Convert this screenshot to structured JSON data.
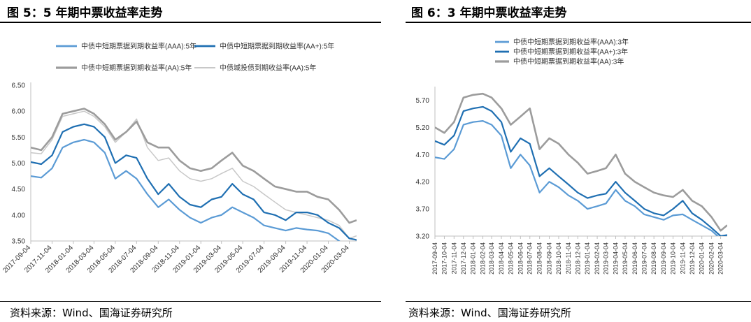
{
  "charts": [
    {
      "title": "图 5：5 年期中票收益率走势",
      "source": "资料来源：Wind、国海证券研究所"
    },
    {
      "title": "图 6：3 年期中票收益率走势",
      "source": "资料来源：Wind、国海证券研究所"
    }
  ],
  "chart_data": [
    {
      "type": "line",
      "title": "图 5：5 年期中票收益率走势",
      "xlabel": "",
      "ylabel": "",
      "ylim": [
        3.5,
        6.5
      ],
      "yticks": [
        "6.50",
        "6.00",
        "5.50",
        "5.00",
        "4.50",
        "4.00",
        "3.50"
      ],
      "xticks": [
        "2017-09-04",
        "2017-11-04",
        "2018-01-04",
        "2018-03-04",
        "2018-05-04",
        "2018-07-04",
        "2018-09-04",
        "2018-11-04",
        "2019-01-04",
        "2019-03-04",
        "2019-05-04",
        "2019-07-04",
        "2019-09-04",
        "2019-11-04",
        "2020-01-04",
        "2020-03-04"
      ],
      "grid": false,
      "legend_position": "top",
      "series": [
        {
          "name": "中债中短期票据到期收益率(AAA):5年",
          "color": "#5b9bd5",
          "width": 2.2,
          "x": [
            "2017-09-04",
            "2017-10-04",
            "2017-11-04",
            "2017-12-04",
            "2018-01-04",
            "2018-02-04",
            "2018-03-04",
            "2018-04-04",
            "2018-05-04",
            "2018-06-04",
            "2018-07-04",
            "2018-08-04",
            "2018-09-04",
            "2018-10-04",
            "2018-11-04",
            "2018-12-04",
            "2019-01-04",
            "2019-02-04",
            "2019-03-04",
            "2019-04-04",
            "2019-05-04",
            "2019-06-04",
            "2019-07-04",
            "2019-08-04",
            "2019-09-04",
            "2019-10-04",
            "2019-11-04",
            "2019-12-04",
            "2020-01-04",
            "2020-02-04",
            "2020-03-04",
            "2020-03-25"
          ],
          "values": [
            4.75,
            4.72,
            4.9,
            5.3,
            5.4,
            5.45,
            5.4,
            5.2,
            4.7,
            4.85,
            4.7,
            4.4,
            4.15,
            4.3,
            4.1,
            3.95,
            3.85,
            3.95,
            4.0,
            4.15,
            4.05,
            3.95,
            3.8,
            3.75,
            3.7,
            3.75,
            3.72,
            3.7,
            3.65,
            3.5,
            3.35,
            3.3
          ]
        },
        {
          "name": "中债中短期票据到期收益率(AA+):5年",
          "color": "#1f6fb2",
          "width": 2.2,
          "x": [
            "2017-09-04",
            "2017-10-04",
            "2017-11-04",
            "2017-12-04",
            "2018-01-04",
            "2018-02-04",
            "2018-03-04",
            "2018-04-04",
            "2018-05-04",
            "2018-06-04",
            "2018-07-04",
            "2018-08-04",
            "2018-09-04",
            "2018-10-04",
            "2018-11-04",
            "2018-12-04",
            "2019-01-04",
            "2019-02-04",
            "2019-03-04",
            "2019-04-04",
            "2019-05-04",
            "2019-06-04",
            "2019-07-04",
            "2019-08-04",
            "2019-09-04",
            "2019-10-04",
            "2019-11-04",
            "2019-12-04",
            "2020-01-04",
            "2020-02-04",
            "2020-03-04",
            "2020-03-25"
          ],
          "values": [
            5.02,
            4.98,
            5.15,
            5.6,
            5.7,
            5.75,
            5.7,
            5.5,
            5.0,
            5.15,
            5.1,
            4.7,
            4.4,
            4.6,
            4.35,
            4.2,
            4.15,
            4.3,
            4.35,
            4.6,
            4.4,
            4.3,
            4.05,
            4.0,
            3.9,
            4.05,
            4.05,
            4.0,
            3.85,
            3.75,
            3.55,
            3.52
          ]
        },
        {
          "name": "中债中短期票据到期收益率(AA):5年",
          "color": "#9c9c9c",
          "width": 2.6,
          "x": [
            "2017-09-04",
            "2017-10-04",
            "2017-11-04",
            "2017-12-04",
            "2018-01-04",
            "2018-02-04",
            "2018-03-04",
            "2018-04-04",
            "2018-05-04",
            "2018-06-04",
            "2018-07-04",
            "2018-08-04",
            "2018-09-04",
            "2018-10-04",
            "2018-11-04",
            "2018-12-04",
            "2019-01-04",
            "2019-02-04",
            "2019-03-04",
            "2019-04-04",
            "2019-05-04",
            "2019-06-04",
            "2019-07-04",
            "2019-08-04",
            "2019-09-04",
            "2019-10-04",
            "2019-11-04",
            "2019-12-04",
            "2020-01-04",
            "2020-02-04",
            "2020-03-04",
            "2020-03-25"
          ],
          "values": [
            5.3,
            5.25,
            5.5,
            5.95,
            6.0,
            6.05,
            5.95,
            5.75,
            5.45,
            5.6,
            5.8,
            5.4,
            5.3,
            5.3,
            5.05,
            4.9,
            4.85,
            4.9,
            5.05,
            5.2,
            4.95,
            4.85,
            4.7,
            4.55,
            4.5,
            4.45,
            4.45,
            4.35,
            4.3,
            4.1,
            3.85,
            3.9
          ]
        },
        {
          "name": "中债城投债到期收益率(AA):5年",
          "color": "#c8c8c8",
          "width": 1.5,
          "x": [
            "2017-09-04",
            "2017-10-04",
            "2017-11-04",
            "2017-12-04",
            "2018-01-04",
            "2018-02-04",
            "2018-03-04",
            "2018-04-04",
            "2018-05-04",
            "2018-06-04",
            "2018-07-04",
            "2018-08-04",
            "2018-09-04",
            "2018-10-04",
            "2018-11-04",
            "2018-12-04",
            "2019-01-04",
            "2019-02-04",
            "2019-03-04",
            "2019-04-04",
            "2019-05-04",
            "2019-06-04",
            "2019-07-04",
            "2019-08-04",
            "2019-09-04",
            "2019-10-04",
            "2019-11-04",
            "2019-12-04",
            "2020-01-04",
            "2020-02-04",
            "2020-03-04",
            "2020-03-25"
          ],
          "values": [
            5.2,
            5.18,
            5.45,
            5.9,
            5.95,
            6.0,
            5.9,
            5.7,
            5.4,
            5.6,
            5.85,
            5.3,
            5.05,
            5.1,
            4.85,
            4.7,
            4.65,
            4.7,
            4.8,
            4.9,
            4.65,
            4.55,
            4.4,
            4.25,
            4.1,
            4.05,
            4.0,
            3.95,
            3.9,
            3.8,
            3.55,
            3.6
          ]
        }
      ]
    },
    {
      "type": "line",
      "title": "图 6：3 年期中票收益率走势",
      "xlabel": "",
      "ylabel": "",
      "ylim": [
        3.2,
        5.9
      ],
      "yticks": [
        "5.70",
        "5.20",
        "4.70",
        "4.20",
        "3.70",
        "3.20"
      ],
      "xticks": [
        "2017-09-04",
        "2017-10-04",
        "2017-11-04",
        "2017-12-04",
        "2018-01-04",
        "2018-02-04",
        "2018-03-04",
        "2018-04-04",
        "2018-05-04",
        "2018-06-04",
        "2018-07-04",
        "2018-08-04",
        "2018-09-04",
        "2018-10-04",
        "2018-11-04",
        "2018-12-04",
        "2019-01-04",
        "2019-02-04",
        "2019-03-04",
        "2019-04-04",
        "2019-05-04",
        "2019-06-04",
        "2019-07-04",
        "2019-08-04",
        "2019-09-04",
        "2019-10-04",
        "2019-11-04",
        "2019-12-04",
        "2020-01-04",
        "2020-02-04",
        "2020-03-04"
      ],
      "grid": false,
      "legend_position": "top",
      "series": [
        {
          "name": "中债中短期票据到期收益率(AAA):3年",
          "color": "#5b9bd5",
          "width": 2.2,
          "x": [
            "2017-09-04",
            "2017-10-04",
            "2017-11-04",
            "2017-12-04",
            "2018-01-04",
            "2018-02-04",
            "2018-03-04",
            "2018-04-04",
            "2018-05-04",
            "2018-06-04",
            "2018-07-04",
            "2018-08-04",
            "2018-09-04",
            "2018-10-04",
            "2018-11-04",
            "2018-12-04",
            "2019-01-04",
            "2019-02-04",
            "2019-03-04",
            "2019-04-04",
            "2019-05-04",
            "2019-06-04",
            "2019-07-04",
            "2019-08-04",
            "2019-09-04",
            "2019-10-04",
            "2019-11-04",
            "2019-12-04",
            "2020-01-04",
            "2020-02-04",
            "2020-03-04",
            "2020-03-25"
          ],
          "values": [
            4.65,
            4.62,
            4.8,
            5.25,
            5.3,
            5.32,
            5.25,
            5.05,
            4.45,
            4.7,
            4.5,
            4.0,
            4.2,
            4.1,
            3.95,
            3.85,
            3.7,
            3.75,
            3.8,
            4.05,
            3.85,
            3.75,
            3.6,
            3.55,
            3.5,
            3.58,
            3.6,
            3.5,
            3.4,
            3.3,
            3.15,
            3.2
          ]
        },
        {
          "name": "中债中短期票据到期收益率(AA+):3年",
          "color": "#1f6fb2",
          "width": 2.2,
          "x": [
            "2017-09-04",
            "2017-10-04",
            "2017-11-04",
            "2017-12-04",
            "2018-01-04",
            "2018-02-04",
            "2018-03-04",
            "2018-04-04",
            "2018-05-04",
            "2018-06-04",
            "2018-07-04",
            "2018-08-04",
            "2018-09-04",
            "2018-10-04",
            "2018-11-04",
            "2018-12-04",
            "2019-01-04",
            "2019-02-04",
            "2019-03-04",
            "2019-04-04",
            "2019-05-04",
            "2019-06-04",
            "2019-07-04",
            "2019-08-04",
            "2019-09-04",
            "2019-10-04",
            "2019-11-04",
            "2019-12-04",
            "2020-01-04",
            "2020-02-04",
            "2020-03-04",
            "2020-03-25"
          ],
          "values": [
            4.95,
            4.88,
            5.05,
            5.5,
            5.55,
            5.58,
            5.5,
            5.3,
            4.75,
            5.0,
            4.9,
            4.3,
            4.45,
            4.3,
            4.15,
            4.0,
            3.9,
            3.95,
            3.98,
            4.2,
            4.0,
            3.85,
            3.7,
            3.62,
            3.58,
            3.7,
            3.85,
            3.62,
            3.5,
            3.35,
            3.2,
            3.22
          ]
        },
        {
          "name": "中债中短期票据到期收益率(AA):3年",
          "color": "#9c9c9c",
          "width": 2.6,
          "x": [
            "2017-09-04",
            "2017-10-04",
            "2017-11-04",
            "2017-12-04",
            "2018-01-04",
            "2018-02-04",
            "2018-03-04",
            "2018-04-04",
            "2018-05-04",
            "2018-06-04",
            "2018-07-04",
            "2018-08-04",
            "2018-09-04",
            "2018-10-04",
            "2018-11-04",
            "2018-12-04",
            "2019-01-04",
            "2019-02-04",
            "2019-03-04",
            "2019-04-04",
            "2019-05-04",
            "2019-06-04",
            "2019-07-04",
            "2019-08-04",
            "2019-09-04",
            "2019-10-04",
            "2019-11-04",
            "2019-12-04",
            "2020-01-04",
            "2020-02-04",
            "2020-03-04",
            "2020-03-25"
          ],
          "values": [
            5.2,
            5.1,
            5.3,
            5.75,
            5.8,
            5.82,
            5.75,
            5.55,
            5.25,
            5.4,
            5.55,
            4.8,
            5.0,
            4.9,
            4.7,
            4.55,
            4.35,
            4.4,
            4.45,
            4.7,
            4.35,
            4.2,
            4.1,
            4.0,
            3.95,
            3.92,
            4.05,
            3.85,
            3.75,
            3.55,
            3.3,
            3.4
          ]
        }
      ]
    }
  ]
}
